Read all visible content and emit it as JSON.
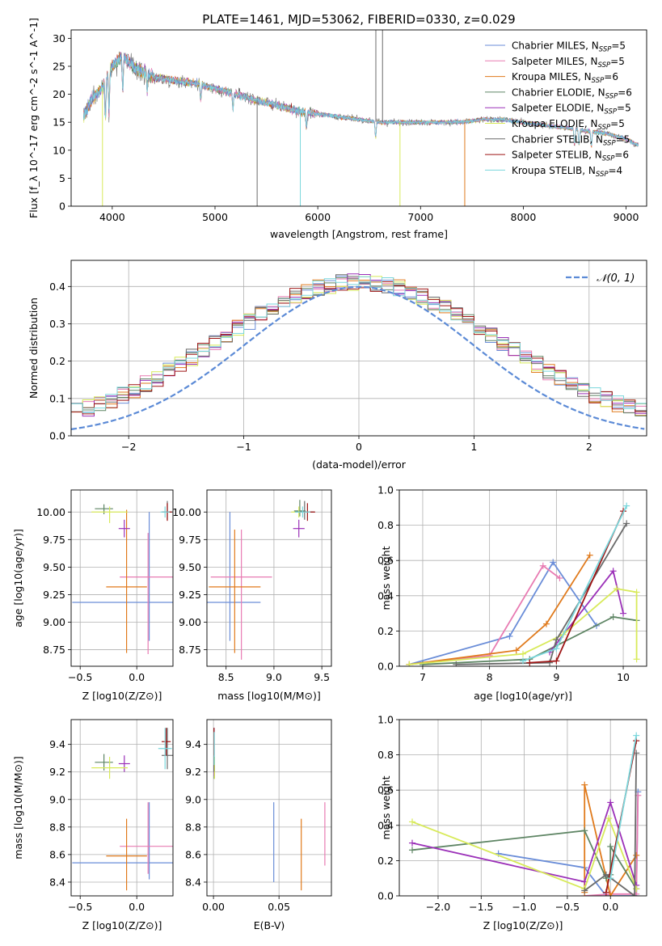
{
  "colors": {
    "blue": "#6a8dd8",
    "pink": "#e87bb2",
    "orange": "#e07a1c",
    "darkgreen": "#5e8564",
    "purple": "#9b30b8",
    "lime": "#d8ea5a",
    "gray": "#6a6a6a",
    "darkred": "#9e1515",
    "cyan": "#7ad7dc",
    "grid": "#b0b0b0",
    "normal_curve": "#5b8ad6"
  },
  "chart_data": [
    {
      "id": "spectrum",
      "type": "line",
      "title": "PLATE=1461, MJD=53062, FIBERID=0330, z=0.029",
      "xlabel": "wavelength [Angstrom, rest frame]",
      "ylabel": "Flux [f",
      "ylabel_full": "Flux [f_λ 10^-17 erg cm^-2 s^-1 A^-1]",
      "xlim": [
        3600,
        9200
      ],
      "ylim": [
        0,
        31.5
      ],
      "xticks": [
        4000,
        5000,
        6000,
        7000,
        8000,
        9000
      ],
      "yticks": [
        0,
        5,
        10,
        15,
        20,
        25,
        30
      ],
      "legend_position": "top-right",
      "legend": [
        {
          "label": "Chabrier MILES, N",
          "sub": "SSP",
          "tail": "=5",
          "color": "blue"
        },
        {
          "label": "Salpeter MILES, N",
          "sub": "SSP",
          "tail": "=5",
          "color": "pink"
        },
        {
          "label": "Kroupa MILES, N",
          "sub": "SSP",
          "tail": "=6",
          "color": "orange"
        },
        {
          "label": "Chabrier ELODIE, N",
          "sub": "SSP",
          "tail": "=6",
          "color": "darkgreen"
        },
        {
          "label": "Salpeter ELODIE, N",
          "sub": "SSP",
          "tail": "=5",
          "color": "purple"
        },
        {
          "label": "Kroupa ELODIE, N",
          "sub": "SSP",
          "tail": "=5",
          "color": "lime"
        },
        {
          "label": "Chabrier STELIB, N",
          "sub": "SSP",
          "tail": "=5",
          "color": "gray"
        },
        {
          "label": "Salpeter STELIB, N",
          "sub": "SSP",
          "tail": "=6",
          "color": "darkred"
        },
        {
          "label": "Kroupa STELIB, N",
          "sub": "SSP",
          "tail": "=4",
          "color": "cyan"
        }
      ],
      "continuum_points": [
        [
          3720,
          16
        ],
        [
          3800,
          19
        ],
        [
          3900,
          21
        ],
        [
          4000,
          25
        ],
        [
          4100,
          27
        ],
        [
          4200,
          25
        ],
        [
          4400,
          23
        ],
        [
          4600,
          22.5
        ],
        [
          4800,
          22
        ],
        [
          5000,
          21
        ],
        [
          5200,
          20
        ],
        [
          5400,
          19
        ],
        [
          5600,
          18
        ],
        [
          5800,
          17
        ],
        [
          6000,
          16.5
        ],
        [
          6200,
          16
        ],
        [
          6400,
          15.5
        ],
        [
          6600,
          15
        ],
        [
          6800,
          15
        ],
        [
          7000,
          15
        ],
        [
          7200,
          15
        ],
        [
          7400,
          15
        ],
        [
          7600,
          15.5
        ],
        [
          7800,
          15.5
        ],
        [
          8000,
          15
        ],
        [
          8200,
          14.5
        ],
        [
          8400,
          14
        ],
        [
          8600,
          13.5
        ],
        [
          8800,
          13
        ],
        [
          9000,
          12
        ],
        [
          9100,
          11
        ]
      ],
      "spikes": [
        {
          "x": 3905,
          "y": 0,
          "color": "lime"
        },
        {
          "x": 5410,
          "y": 0,
          "color": "gray"
        },
        {
          "x": 5830,
          "y": 0,
          "color": "cyan"
        },
        {
          "x": 6800,
          "y": 0,
          "color": "lime"
        },
        {
          "x": 7430,
          "y": 0,
          "color": "orange"
        },
        {
          "x": 6565,
          "y": 31.5,
          "color": "gray"
        },
        {
          "x": 6630,
          "y": 31.5,
          "color": "gray"
        }
      ]
    },
    {
      "id": "residuals",
      "type": "line",
      "xlabel": "(data-model)/error",
      "ylabel": "Normed distribution",
      "xlim": [
        -2.5,
        2.5
      ],
      "ylim": [
        0,
        0.47
      ],
      "xticks": [
        -2,
        -1,
        0,
        1,
        2
      ],
      "xticklabels": [
        "−2",
        "−1",
        "0",
        "1",
        "2"
      ],
      "yticks": [
        0.0,
        0.1,
        0.2,
        0.3,
        0.4
      ],
      "yticklabels": [
        "0.0",
        "0.1",
        "0.2",
        "0.3",
        "0.4"
      ],
      "bin_width": 0.1,
      "legend_position": "top-right",
      "legend_normal": "𝒩(0, 1)",
      "histogram_series_colors": [
        "blue",
        "pink",
        "orange",
        "darkgreen",
        "purple",
        "lime",
        "gray",
        "darkred",
        "cyan"
      ]
    },
    {
      "id": "age-vs-Z",
      "type": "scatter",
      "xlabel": "Z [log",
      "xlabel_full": "Z [log10(Z/Z⊙)]",
      "ylabel_full": "age [log10(age/yr)]",
      "xlim": [
        -0.58,
        0.32
      ],
      "ylim": [
        8.6,
        10.2
      ],
      "xticks": [
        -0.5,
        0.0
      ],
      "xticklabels": [
        "−0.5",
        "0.0"
      ],
      "yticks": [
        8.75,
        9.0,
        9.25,
        9.5,
        9.75,
        10.0
      ],
      "yticklabels": [
        "8.75",
        "9.00",
        "9.25",
        "9.50",
        "9.75",
        "10.00"
      ],
      "points": [
        {
          "x": 0.11,
          "y": 9.18,
          "xerr": 0.68,
          "yerr": [
            0.35,
            0.82
          ],
          "color": "blue"
        },
        {
          "x": 0.1,
          "y": 9.41,
          "xerr": 0.25,
          "yerr": [
            0.7,
            0.4
          ],
          "color": "pink"
        },
        {
          "x": -0.09,
          "y": 9.32,
          "xerr": 0.18,
          "yerr": [
            0.6,
            0.7
          ],
          "color": "orange"
        },
        {
          "x": -0.29,
          "y": 10.03,
          "xerr": 0.08,
          "yerr": [
            0.05,
            0.04
          ],
          "color": "darkgreen"
        },
        {
          "x": -0.11,
          "y": 9.85,
          "xerr": 0.05,
          "yerr": [
            0.08,
            0.08
          ],
          "color": "purple"
        },
        {
          "x": -0.24,
          "y": 10.0,
          "xerr": 0.16,
          "yerr": [
            0.1,
            0.05
          ],
          "color": "lime"
        },
        {
          "x": 0.27,
          "y": 10.0,
          "xerr": 0.05,
          "yerr": [
            0.07,
            0.1
          ],
          "color": "gray"
        },
        {
          "x": 0.27,
          "y": 10.0,
          "xerr": 0.04,
          "yerr": [
            0.08,
            0.08
          ],
          "color": "darkred"
        },
        {
          "x": 0.25,
          "y": 10.0,
          "xerr": 0.04,
          "yerr": [
            0.05,
            0.05
          ],
          "color": "cyan"
        }
      ]
    },
    {
      "id": "age-vs-mass",
      "type": "scatter",
      "xlabel_full": "mass [log10(M/M⊙)]",
      "xlim": [
        8.3,
        9.6
      ],
      "ylim": [
        8.6,
        10.2
      ],
      "xticks": [
        8.5,
        9.0,
        9.5
      ],
      "xticklabels": [
        "8.5",
        "9.0",
        "9.5"
      ],
      "yticks": [
        8.75,
        9.0,
        9.25,
        9.5,
        9.75,
        10.0
      ],
      "yticklabels": [
        "8.75",
        "9.00",
        "9.25",
        "9.50",
        "9.75",
        "10.00"
      ],
      "points": [
        {
          "x": 8.54,
          "y": 9.18,
          "xerr": 0.32,
          "yerr": [
            0.35,
            0.82
          ],
          "color": "blue"
        },
        {
          "x": 8.66,
          "y": 9.41,
          "xerr": 0.32,
          "yerr": [
            0.75,
            0.43
          ],
          "color": "pink"
        },
        {
          "x": 8.59,
          "y": 9.32,
          "xerr": 0.27,
          "yerr": [
            0.6,
            0.52
          ],
          "color": "orange"
        },
        {
          "x": 9.27,
          "y": 10.01,
          "xerr": 0.06,
          "yerr": [
            0.05,
            0.1
          ],
          "color": "darkgreen"
        },
        {
          "x": 9.26,
          "y": 9.85,
          "xerr": 0.06,
          "yerr": [
            0.08,
            0.08
          ],
          "color": "purple"
        },
        {
          "x": 9.26,
          "y": 10.0,
          "xerr": 0.08,
          "yerr": [
            0.05,
            0.05
          ],
          "color": "lime"
        },
        {
          "x": 9.32,
          "y": 10.0,
          "xerr": 0.1,
          "yerr": [
            0.07,
            0.1
          ],
          "color": "gray"
        },
        {
          "x": 9.35,
          "y": 10.0,
          "xerr": 0.08,
          "yerr": [
            0.08,
            0.08
          ],
          "color": "darkred"
        },
        {
          "x": 9.3,
          "y": 10.0,
          "xerr": 0.08,
          "yerr": [
            0.05,
            0.05
          ],
          "color": "cyan"
        }
      ]
    },
    {
      "id": "weight-vs-age",
      "type": "line",
      "xlabel_full": "age [log10(age/yr)]",
      "ylabel": "mass weight",
      "xlim": [
        6.65,
        10.35
      ],
      "ylim": [
        0,
        1
      ],
      "xticks": [
        7,
        8,
        9,
        10
      ],
      "yticks": [
        0.0,
        0.2,
        0.4,
        0.6,
        0.8,
        1.0
      ],
      "yticklabels": [
        "0.0",
        "0.2",
        "0.4",
        "0.6",
        "0.8",
        "1.0"
      ],
      "series": [
        {
          "color": "blue",
          "x": [
            6.8,
            8.3,
            8.95,
            9.6
          ],
          "y": [
            0.01,
            0.17,
            0.59,
            0.23
          ]
        },
        {
          "color": "pink",
          "x": [
            6.8,
            8.0,
            8.8,
            9.05
          ],
          "y": [
            0.01,
            0.06,
            0.57,
            0.5
          ]
        },
        {
          "color": "orange",
          "x": [
            6.8,
            8.4,
            8.85,
            9.5
          ],
          "y": [
            0.01,
            0.09,
            0.24,
            0.63
          ]
        },
        {
          "color": "darkgreen",
          "x": [
            7.0,
            8.6,
            9.85,
            10.2
          ],
          "y": [
            0.01,
            0.04,
            0.28,
            0.26
          ]
        },
        {
          "color": "purple",
          "x": [
            8.9,
            9.85,
            10.0
          ],
          "y": [
            0.08,
            0.54,
            0.3
          ]
        },
        {
          "color": "lime",
          "x": [
            6.8,
            8.5,
            9.1,
            9.9,
            10.2,
            10.2
          ],
          "y": [
            0.01,
            0.07,
            0.18,
            0.44,
            0.42,
            0.04
          ]
        },
        {
          "color": "gray",
          "x": [
            7.5,
            8.9,
            9.0,
            10.05
          ],
          "y": [
            0.01,
            0.02,
            0.15,
            0.81
          ]
        },
        {
          "color": "darkred",
          "x": [
            8.6,
            9.0,
            10.0
          ],
          "y": [
            0.02,
            0.03,
            0.88
          ]
        },
        {
          "color": "cyan",
          "x": [
            8.5,
            9.0,
            10.05
          ],
          "y": [
            0.03,
            0.1,
            0.91
          ]
        }
      ]
    },
    {
      "id": "mass-vs-Z",
      "type": "scatter",
      "xlabel_full": "Z [log10(Z/Z⊙)]",
      "ylabel_full": "mass [log10(M/M⊙)]",
      "xlim": [
        -0.58,
        0.32
      ],
      "ylim": [
        8.3,
        9.58
      ],
      "xticks": [
        -0.5,
        0.0
      ],
      "xticklabels": [
        "−0.5",
        "0.0"
      ],
      "yticks": [
        8.4,
        8.6,
        8.8,
        9.0,
        9.2,
        9.4
      ],
      "yticklabels": [
        "8.4",
        "8.6",
        "8.8",
        "9.0",
        "9.2",
        "9.4"
      ],
      "points": [
        {
          "x": 0.11,
          "y": 8.54,
          "xerr": 0.68,
          "yerr": [
            0.12,
            0.44
          ],
          "color": "blue"
        },
        {
          "x": 0.1,
          "y": 8.66,
          "xerr": 0.25,
          "yerr": [
            0.2,
            0.32
          ],
          "color": "pink"
        },
        {
          "x": -0.09,
          "y": 8.59,
          "xerr": 0.18,
          "yerr": [
            0.25,
            0.27
          ],
          "color": "orange"
        },
        {
          "x": -0.29,
          "y": 9.27,
          "xerr": 0.08,
          "yerr": [
            0.06,
            0.06
          ],
          "color": "darkgreen"
        },
        {
          "x": -0.11,
          "y": 9.26,
          "xerr": 0.05,
          "yerr": [
            0.06,
            0.06
          ],
          "color": "purple"
        },
        {
          "x": -0.24,
          "y": 9.23,
          "xerr": 0.16,
          "yerr": [
            0.08,
            0.08
          ],
          "color": "lime"
        },
        {
          "x": 0.27,
          "y": 9.32,
          "xerr": 0.05,
          "yerr": [
            0.1,
            0.2
          ],
          "color": "gray"
        },
        {
          "x": 0.26,
          "y": 9.42,
          "xerr": 0.04,
          "yerr": [
            0.1,
            0.1
          ],
          "color": "darkred"
        },
        {
          "x": 0.25,
          "y": 9.37,
          "xerr": 0.06,
          "yerr": [
            0.15,
            0.15
          ],
          "color": "cyan"
        }
      ]
    },
    {
      "id": "mass-vs-EBV",
      "type": "scatter",
      "xlabel": "E(B-V)",
      "xlim": [
        -0.005,
        0.09
      ],
      "ylim": [
        8.3,
        9.58
      ],
      "xticks": [
        0.0,
        0.05
      ],
      "xticklabels": [
        "0.00",
        "0.05"
      ],
      "yticks": [
        8.4,
        8.6,
        8.8,
        9.0,
        9.2,
        9.4
      ],
      "yticklabels": [
        "8.4",
        "8.6",
        "8.8",
        "9.0",
        "9.2",
        "9.4"
      ],
      "points": [
        {
          "x": 0.046,
          "y": 8.54,
          "yerr": [
            0.14,
            0.44
          ],
          "color": "blue"
        },
        {
          "x": 0.085,
          "y": 8.66,
          "yerr": [
            0.14,
            0.32
          ],
          "color": "pink"
        },
        {
          "x": 0.067,
          "y": 8.59,
          "yerr": [
            0.25,
            0.27
          ],
          "color": "orange"
        },
        {
          "x": 0.0005,
          "y": 9.3,
          "yerr": [
            0.15,
            0.2
          ],
          "color": "darkgreen"
        },
        {
          "x": 0.0005,
          "y": 9.32,
          "yerr": [
            0.15,
            0.2
          ],
          "color": "purple"
        },
        {
          "x": 0.0008,
          "y": 9.23,
          "yerr": [
            0.08,
            0.08
          ],
          "color": "lime"
        },
        {
          "x": 0.0003,
          "y": 9.35,
          "yerr": [
            0.15,
            0.17
          ],
          "color": "gray"
        },
        {
          "x": 0.0004,
          "y": 9.42,
          "yerr": [
            0.1,
            0.1
          ],
          "color": "darkred"
        },
        {
          "x": 0.0006,
          "y": 9.37,
          "yerr": [
            0.12,
            0.12
          ],
          "color": "cyan"
        }
      ]
    },
    {
      "id": "weight-vs-Z",
      "type": "line",
      "xlabel_full": "Z [log10(Z/Z⊙)]",
      "ylabel": "mass weight",
      "xlim": [
        -2.45,
        0.42
      ],
      "ylim": [
        0,
        1
      ],
      "xticks": [
        -2.0,
        -1.5,
        -1.0,
        -0.5,
        0.0
      ],
      "xticklabels": [
        "−2.0",
        "−1.5",
        "−1.0",
        "−0.5",
        "0.0"
      ],
      "yticks": [
        0.0,
        0.2,
        0.4,
        0.6,
        0.8,
        1.0
      ],
      "yticklabels": [
        "0.0",
        "0.2",
        "0.4",
        "0.6",
        "0.8",
        "1.0"
      ],
      "series": [
        {
          "color": "blue",
          "x": [
            -1.3,
            -0.3,
            -0.05,
            0.3,
            0.32
          ],
          "y": [
            0.24,
            0.16,
            0.0,
            0.0,
            0.59
          ]
        },
        {
          "color": "pink",
          "x": [
            -0.3,
            0.0,
            0.3,
            0.32
          ],
          "y": [
            0.0,
            0.01,
            0.01,
            0.57
          ]
        },
        {
          "color": "orange",
          "x": [
            -0.3,
            -0.3,
            0.0,
            0.3
          ],
          "y": [
            0.02,
            0.63,
            0.0,
            0.23
          ]
        },
        {
          "color": "darkgreen",
          "x": [
            -2.3,
            -0.3,
            -0.05,
            0.0,
            0.0,
            0.3
          ],
          "y": [
            0.26,
            0.37,
            0.1,
            0.12,
            0.28,
            0.04
          ]
        },
        {
          "color": "purple",
          "x": [
            -2.3,
            -0.3,
            0.0,
            0.3
          ],
          "y": [
            0.3,
            0.08,
            0.53,
            0.06
          ]
        },
        {
          "color": "lime",
          "x": [
            -2.3,
            -0.3,
            -0.02,
            0.3
          ],
          "y": [
            0.42,
            0.04,
            0.44,
            0.04
          ]
        },
        {
          "color": "gray",
          "x": [
            -0.3,
            -0.05,
            0.28,
            0.3
          ],
          "y": [
            0.03,
            0.12,
            0.0,
            0.81
          ]
        },
        {
          "color": "darkred",
          "x": [
            -0.05,
            0.3
          ],
          "y": [
            0.02,
            0.88
          ]
        },
        {
          "color": "cyan",
          "x": [
            0.0,
            0.3
          ],
          "y": [
            0.1,
            0.91
          ]
        }
      ]
    }
  ]
}
